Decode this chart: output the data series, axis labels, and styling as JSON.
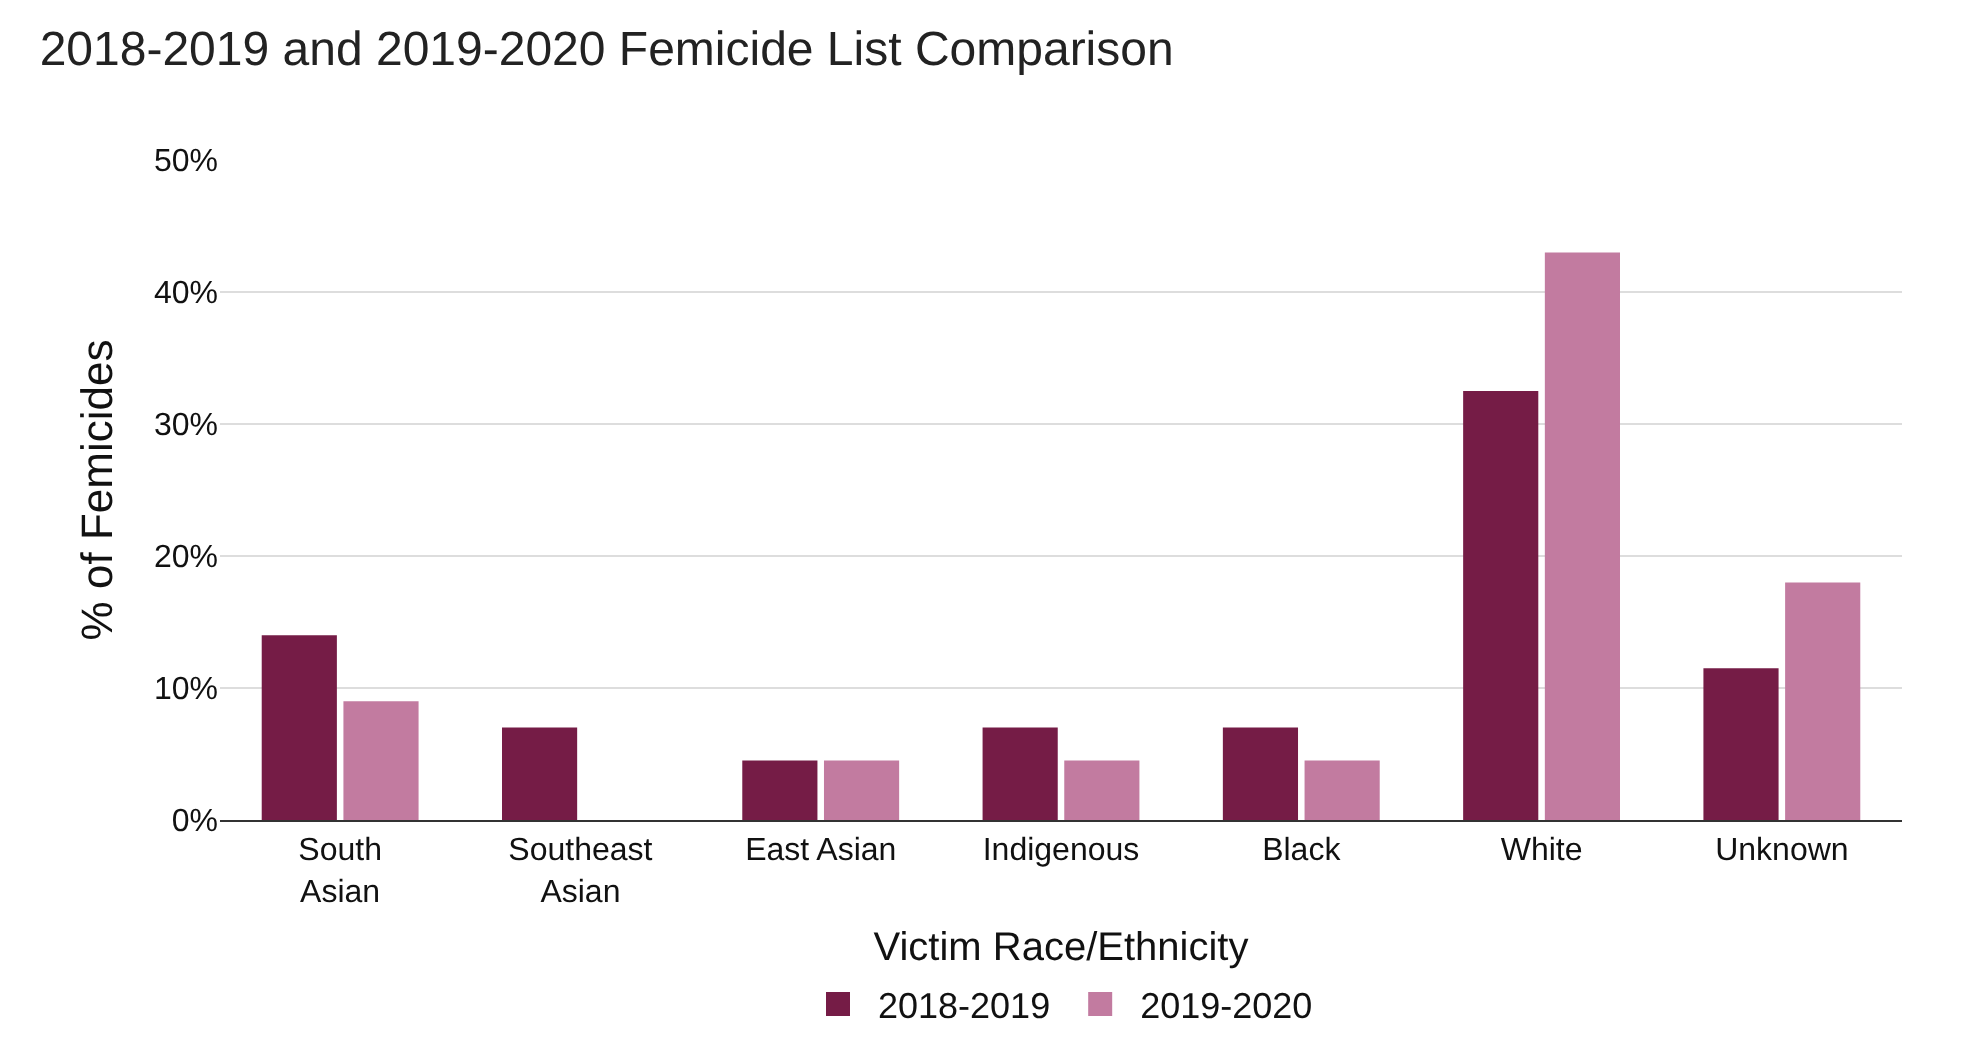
{
  "chart_data": {
    "type": "bar",
    "title": "2018-2019 and 2019-2020 Femicide List Comparison",
    "xlabel": "Victim Race/Ethnicity",
    "ylabel": "% of Femicides",
    "categories": [
      "South Asian",
      "Southeast Asian",
      "East Asian",
      "Indigenous",
      "Black",
      "White",
      "Unknown"
    ],
    "series": [
      {
        "name": "2018-2019",
        "color": "#751c46",
        "values": [
          14,
          7,
          4.5,
          7,
          7,
          32.5,
          11.5
        ]
      },
      {
        "name": "2019-2020",
        "color": "#c27ba0",
        "values": [
          9,
          0,
          4.5,
          4.5,
          4.5,
          43,
          18
        ]
      }
    ],
    "ylim": [
      0,
      50
    ],
    "yticks": [
      {
        "value": 0,
        "label": "0%"
      },
      {
        "value": 10,
        "label": "10%"
      },
      {
        "value": 20,
        "label": "20%"
      },
      {
        "value": 30,
        "label": "30%"
      },
      {
        "value": 40,
        "label": "40%"
      },
      {
        "value": 50,
        "label": "50%"
      }
    ],
    "grid": "y",
    "legend": "bottom"
  }
}
